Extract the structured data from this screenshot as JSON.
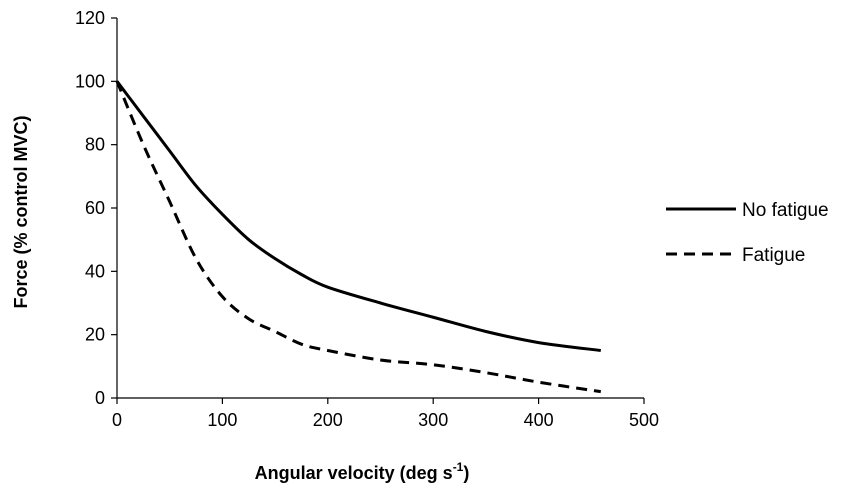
{
  "chart_data": {
    "type": "line",
    "title": "",
    "xlabel": "Angular velocity (deg s",
    "xlabel_superscript": "-1",
    "xlabel_suffix": ")",
    "ylabel": "Force (% control MVC)",
    "xlim": [
      0,
      500
    ],
    "ylim": [
      0,
      120
    ],
    "xticks": [
      0,
      100,
      200,
      300,
      400,
      500
    ],
    "yticks": [
      0,
      20,
      40,
      60,
      80,
      100,
      120
    ],
    "grid": false,
    "legend_position": "right",
    "series": [
      {
        "name": "No fatigue",
        "line_style": "solid",
        "color": "#000000",
        "points": [
          [
            0,
            100
          ],
          [
            25,
            89
          ],
          [
            50,
            78
          ],
          [
            75,
            67
          ],
          [
            100,
            58
          ],
          [
            125,
            50
          ],
          [
            150,
            44
          ],
          [
            175,
            39
          ],
          [
            200,
            35
          ],
          [
            250,
            30
          ],
          [
            300,
            25.5
          ],
          [
            350,
            21
          ],
          [
            400,
            17.5
          ],
          [
            459,
            15
          ]
        ]
      },
      {
        "name": "Fatigue",
        "line_style": "dashed",
        "color": "#000000",
        "points": [
          [
            0,
            100
          ],
          [
            25,
            80
          ],
          [
            50,
            62
          ],
          [
            75,
            44
          ],
          [
            100,
            32
          ],
          [
            125,
            25
          ],
          [
            150,
            21
          ],
          [
            175,
            17
          ],
          [
            200,
            15
          ],
          [
            250,
            12
          ],
          [
            300,
            10.5
          ],
          [
            350,
            8
          ],
          [
            400,
            5
          ],
          [
            459,
            2
          ]
        ]
      }
    ]
  }
}
